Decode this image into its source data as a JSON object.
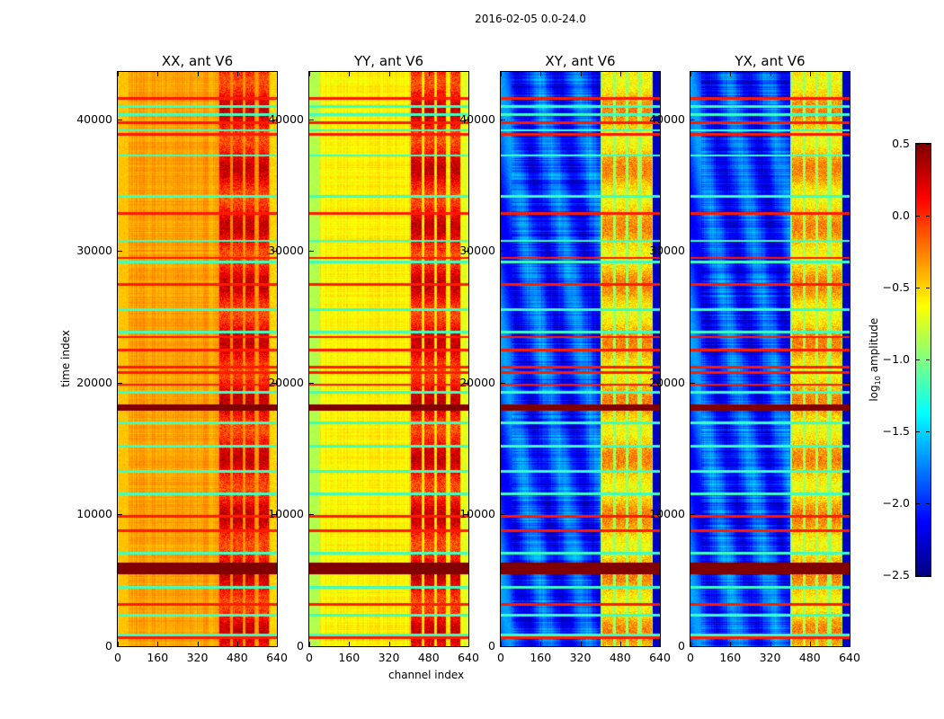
{
  "chart_data": {
    "type": "heatmap",
    "title": "2016-02-05 0.0-24.0",
    "xlabel": "channel index",
    "ylabel": "time index",
    "xlim": [
      0,
      640
    ],
    "ylim": [
      0,
      43600
    ],
    "xticks": [
      0,
      160,
      320,
      480,
      640
    ],
    "yticks": [
      0,
      10000,
      20000,
      30000,
      40000
    ],
    "grid": false,
    "colormap": "jet",
    "colorbar": {
      "label_main": "log",
      "label_sub": "10",
      "label_tail": " amplitude",
      "range": [
        -2.5,
        0.5
      ],
      "ticks": [
        "0.5",
        "0.0",
        "−0.5",
        "−1.0",
        "−1.5",
        "−2.0",
        "−2.5"
      ],
      "tick_values": [
        0.5,
        0.0,
        -0.5,
        -1.0,
        -1.5,
        -2.0,
        -2.5
      ],
      "placement": "right"
    },
    "panels": [
      {
        "title": "XX, ant V6",
        "base_log_amp": -0.35,
        "left_edge_log_amp": -0.45,
        "rfi_log_amp": 0.1,
        "edge_channels_log_amp": -0.5
      },
      {
        "title": "YY, ant V6",
        "base_log_amp": -0.6,
        "left_edge_log_amp": -0.85,
        "rfi_log_amp": 0.1,
        "edge_channels_log_amp": -0.7
      },
      {
        "title": "XY, ant V6",
        "base_log_amp": -1.95,
        "left_edge_log_amp": -1.9,
        "rfi_log_amp": -0.45,
        "edge_channels_log_amp": -2.3
      },
      {
        "title": "YX, ant V6",
        "base_log_amp": -1.95,
        "left_edge_log_amp": -1.9,
        "rfi_log_amp": -0.45,
        "edge_channels_log_amp": -2.3
      }
    ],
    "rfi_channel_ranges": [
      [
        405,
        450
      ],
      [
        462,
        500
      ],
      [
        512,
        548
      ],
      [
        565,
        605
      ]
    ],
    "saturated_time_bands": [
      [
        5500,
        6400
      ],
      [
        17900,
        18400
      ]
    ],
    "high_time_rows": [
      700,
      3200,
      8800,
      9900,
      19900,
      20800,
      21200,
      22500,
      23500,
      27500,
      29500,
      32900,
      38900,
      39800,
      41600
    ],
    "low_time_rows": [
      900,
      2400,
      4500,
      7100,
      11600,
      13300,
      15200,
      17000,
      19300,
      23900,
      25600,
      29200,
      30800,
      34200,
      37300,
      39200,
      40400,
      41000
    ]
  }
}
